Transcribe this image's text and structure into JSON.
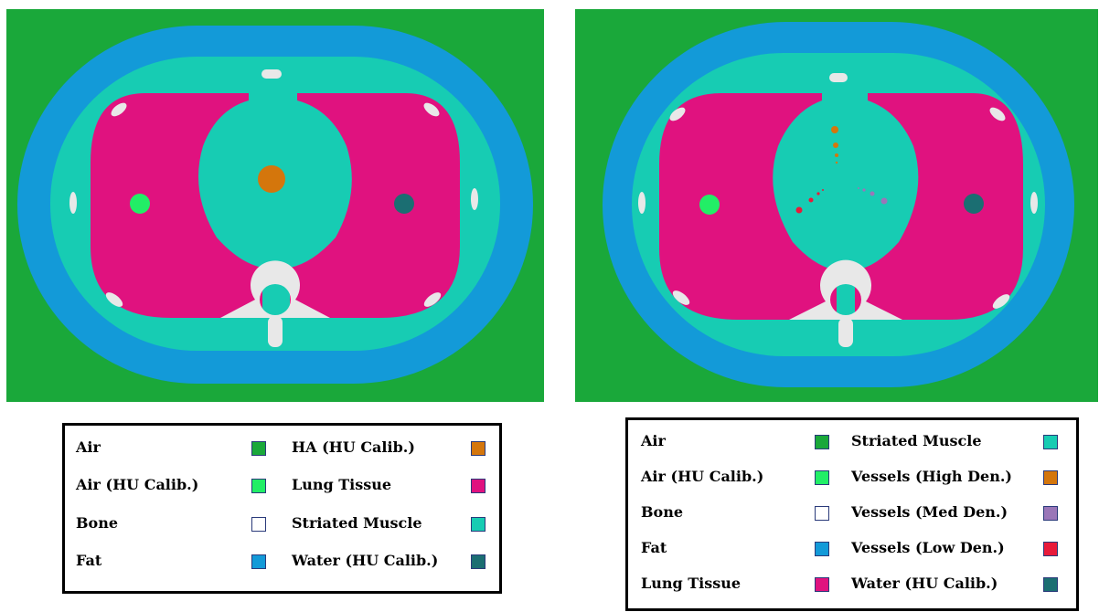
{
  "colors": {
    "background": "#1aa83a",
    "fat": "#139ad8",
    "muscle": "#17ccb3",
    "lung": "#e0127f",
    "bone": "#e8e8e8",
    "air_calib": "#22ee66",
    "water_calib": "#1b6e72",
    "ha_calib": "#d4760c",
    "vessels_high": "#d4760c",
    "vessels_med": "#9a76b8",
    "vessels_low": "#e81a3a"
  },
  "legend_left": {
    "entries": [
      {
        "label": "Air",
        "color": "#1aa83a"
      },
      {
        "label": "Air (HU Calib.)",
        "color": "#22ee66"
      },
      {
        "label": "Bone",
        "color": "#ffffff"
      },
      {
        "label": "Fat",
        "color": "#139ad8"
      },
      {
        "label": "HA (HU Calib.)",
        "color": "#d4760c"
      },
      {
        "label": "Lung Tissue",
        "color": "#e0127f"
      },
      {
        "label": "Striated Muscle",
        "color": "#17ccb3"
      },
      {
        "label": "Water (HU Calib.)",
        "color": "#1b6e72"
      }
    ]
  },
  "legend_right": {
    "entries": [
      {
        "label": "Air",
        "color": "#1aa83a"
      },
      {
        "label": "Air (HU Calib.)",
        "color": "#22ee66"
      },
      {
        "label": "Bone",
        "color": "#ffffff"
      },
      {
        "label": "Fat",
        "color": "#139ad8"
      },
      {
        "label": "Lung Tissue",
        "color": "#e0127f"
      },
      {
        "label": "Striated Muscle",
        "color": "#17ccb3"
      },
      {
        "label": "Vessels (High Den.)",
        "color": "#d4760c"
      },
      {
        "label": "Vessels (Med Den.)",
        "color": "#9a76b8"
      },
      {
        "label": "Vessels (Low Den.)",
        "color": "#e81a3a"
      },
      {
        "label": "Water (HU Calib.)",
        "color": "#1b6e72"
      }
    ]
  }
}
